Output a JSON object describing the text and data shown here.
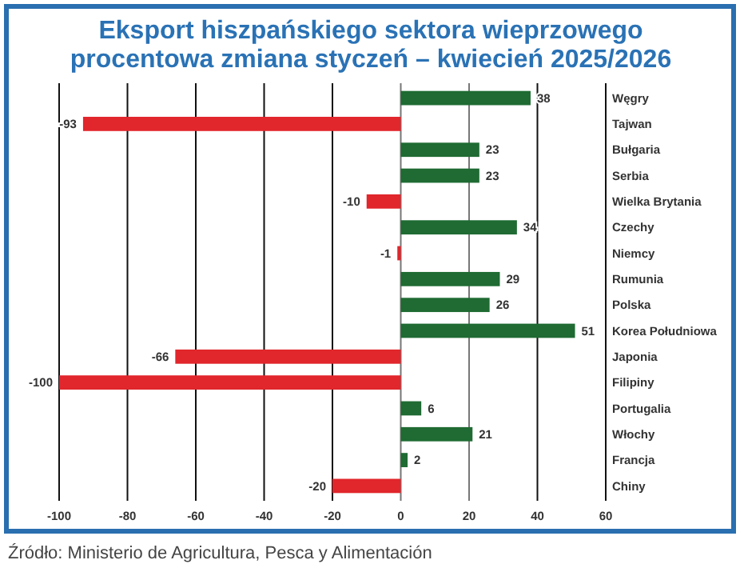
{
  "chart_data": {
    "type": "bar",
    "orientation": "horizontal",
    "title": "Eksport hiszpańskiego sektora wieprzowego\nprocentowa zmiana styczeń – kwiecień 2025/2026",
    "categories": [
      "Węgry",
      "Tajwan",
      "Bułgaria",
      "Serbia",
      "Wielka Brytania",
      "Czechy",
      "Niemcy",
      "Rumunia",
      "Polska",
      "Korea Południowa",
      "Japonia",
      "Filipiny",
      "Portugalia",
      "Włochy",
      "Francja",
      "Chiny"
    ],
    "values": [
      38,
      -93,
      23,
      23,
      -10,
      34,
      -1,
      29,
      26,
      51,
      -66,
      -100,
      6,
      21,
      2,
      -20
    ],
    "colors": [
      "#1f6b33",
      "#e1262c",
      "#1f6b33",
      "#1f6b33",
      "#e1262c",
      "#1f6b33",
      "#e1262c",
      "#1f6b33",
      "#1f6b33",
      "#1f6b33",
      "#e1262c",
      "#e1262c",
      "#1f6b33",
      "#1f6b33",
      "#1f6b33",
      "#e1262c"
    ],
    "xlim": [
      -100,
      60
    ],
    "xticks": [
      -100,
      -80,
      -60,
      -40,
      -20,
      0,
      20,
      40,
      60
    ],
    "grid": "x",
    "data_labels": true,
    "annotations": [
      "Źródło: Ministerio de Agricultura, Pesca y Alimentación"
    ]
  }
}
